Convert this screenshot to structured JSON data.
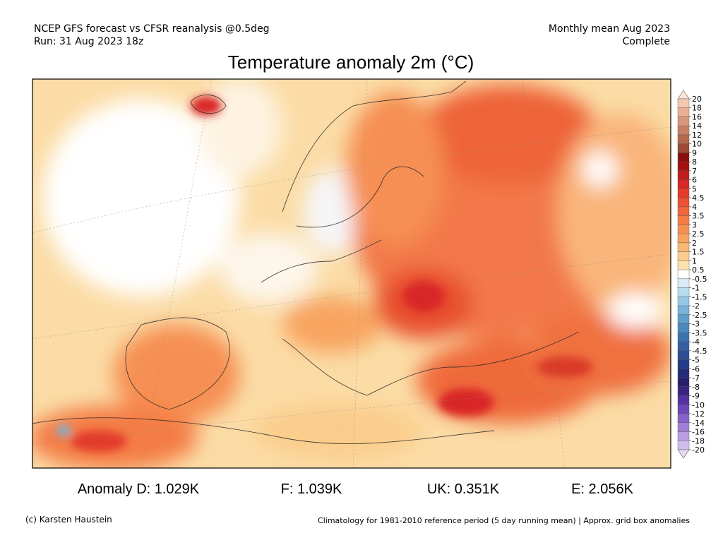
{
  "header": {
    "left_line1": "NCEP GFS forecast vs CFSR reanalysis @0.5deg",
    "left_line2": "Run: 31 Aug 2023 18z",
    "right_line1": "Monthly mean Aug 2023",
    "right_line2": "Complete"
  },
  "title": "Temperature anomaly 2m (°C)",
  "colorbar": {
    "ticks": [
      20,
      18,
      16,
      14,
      12,
      10,
      9,
      8,
      7,
      6,
      5,
      4.5,
      4,
      3.5,
      3,
      2.5,
      2,
      1.5,
      1,
      0.5,
      -0.5,
      -1,
      -1.5,
      -2,
      -2.5,
      -3,
      -3.5,
      -4,
      -4.5,
      -5,
      -6,
      -7,
      -8,
      -9,
      -10,
      -12,
      -14,
      -16,
      -18,
      -20
    ],
    "colors": [
      "#fbe3d6",
      "#f5c9b0",
      "#eab094",
      "#d9977a",
      "#c77f62",
      "#b5684c",
      "#9c4a35",
      "#8a0f0f",
      "#a81010",
      "#c21c1c",
      "#d92626",
      "#e63a2a",
      "#ec5332",
      "#f0673b",
      "#f47c45",
      "#f68f52",
      "#f8a460",
      "#fab874",
      "#fbcd8c",
      "#fbe2ac",
      "#ffffff",
      "#d8ecf8",
      "#b7dcf0",
      "#96c8e6",
      "#78b4da",
      "#5e9ecd",
      "#4b88bf",
      "#3d72b1",
      "#345fa3",
      "#2c4c94",
      "#263b86",
      "#232c78",
      "#261f6e",
      "#3b2384",
      "#5433a0",
      "#6d48b8",
      "#8762c9",
      "#a07fd6",
      "#b99de2",
      "#d2bdee",
      "#e6d9f6"
    ]
  },
  "stats": [
    "Anomaly D: 1.029K",
    "F: 1.039K",
    "UK: 0.351K",
    "E: 2.056K"
  ],
  "footer": {
    "left": "(c) Karsten Haustein",
    "right": "Climatology for 1981-2010 reference period (5 day running mean) | Approx. grid box anomalies"
  }
}
